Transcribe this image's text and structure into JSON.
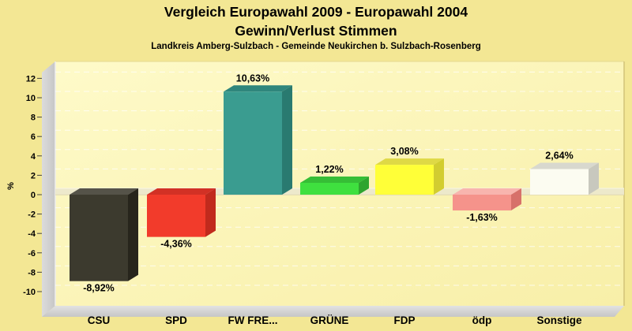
{
  "header": {
    "title_line1": "Vergleich Europawahl 2009 - Europawahl 2004",
    "title_line2": "Gewinn/Verlust Stimmen",
    "subtitle": "Landkreis Amberg-Sulzbach - Gemeinde Neukirchen b. Sulzbach-Rosenberg"
  },
  "chart_data": {
    "type": "bar",
    "title": "Vergleich Europawahl 2009 - Europawahl 2004 / Gewinn/Verlust Stimmen",
    "subtitle": "Landkreis Amberg-Sulzbach - Gemeinde Neukirchen b. Sulzbach-Rosenberg",
    "categories": [
      "CSU",
      "SPD",
      "FW FRE...",
      "GRÜNE",
      "FDP",
      "ödp",
      "Sonstige"
    ],
    "values": [
      -8.92,
      -4.36,
      10.63,
      1.22,
      3.08,
      -1.63,
      2.64
    ],
    "value_labels": [
      "-8,92%",
      "-4,36%",
      "10,63%",
      "1,22%",
      "3,08%",
      "-1,63%",
      "2,64%"
    ],
    "xlabel": "",
    "ylabel": "%",
    "yticks": [
      12,
      10,
      8,
      6,
      4,
      2,
      0,
      -2,
      -4,
      -6,
      -8,
      -10
    ],
    "ylim": [
      -11.5,
      13.7
    ],
    "grid": "dashed-horizontal",
    "legend": "none",
    "style": "3d-bars",
    "bar_colors": [
      {
        "party": "CSU",
        "front": "#3C3A2E",
        "top": "#555349",
        "side": "#27251C"
      },
      {
        "party": "SPD",
        "front": "#F23B2B",
        "top": "#D23125",
        "side": "#C12A1D"
      },
      {
        "party": "FW FRE...",
        "front": "#3A9C90",
        "top": "#2F867C",
        "side": "#297A70"
      },
      {
        "party": "GRÜNE",
        "front": "#3FE03F",
        "top": "#36BE36",
        "side": "#2FA52F"
      },
      {
        "party": "FDP",
        "front": "#FFFF38",
        "top": "#DFD945",
        "side": "#D2CD30"
      },
      {
        "party": "ödp",
        "front": "#F5938B",
        "top": "#F8B5AE",
        "side": "#D7716A"
      },
      {
        "party": "Sonstige",
        "front": "#FCFCF1",
        "top": "#D8D8CE",
        "side": "#C8C8BE"
      }
    ]
  },
  "colors": {
    "page_bg": "#F3E794",
    "plot_bg_light": "#FEFAC9",
    "plot_bg_dark": "#F8EFA8",
    "wall_light": "#DCDCDC",
    "wall_dark": "#C6C6C6",
    "grid_line": "#FFFFFF",
    "zero_plane": "#ECE8CC",
    "plot_border": "#D2C478",
    "text": "#000000"
  }
}
